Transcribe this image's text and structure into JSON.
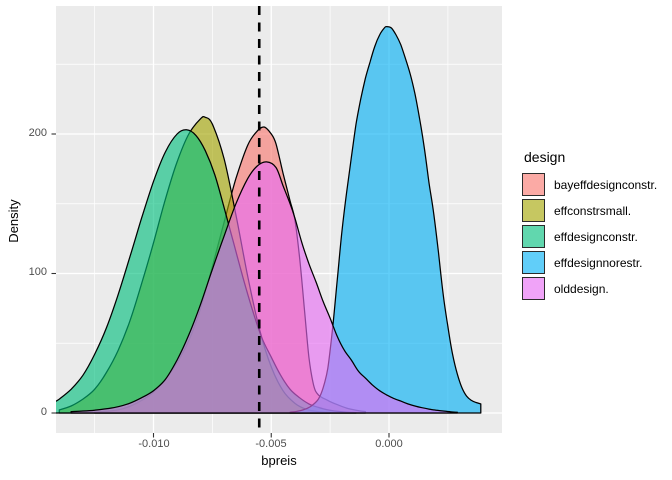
{
  "figure": {
    "background": "#FFFFFF",
    "panel_background": "#EBEBEB",
    "grid_color": "#FFFFFF",
    "tick_color": "#333333",
    "tick_label_color": "#4D4D4D"
  },
  "axes": {
    "x": {
      "title": "bpreis",
      "ticks": [
        {
          "value": -0.01,
          "label": "-0.010"
        },
        {
          "value": -0.005,
          "label": "-0.005"
        },
        {
          "value": 0.0,
          "label": "0.000"
        }
      ],
      "minor": [
        -0.0125,
        -0.0075,
        -0.0025,
        0.0025
      ]
    },
    "y": {
      "title": "Density",
      "ticks": [
        {
          "value": 0,
          "label": "0"
        },
        {
          "value": 100,
          "label": "100"
        },
        {
          "value": 200,
          "label": "200"
        }
      ],
      "minor": [
        50,
        150,
        250
      ]
    }
  },
  "annotations": {
    "vline": {
      "x": -0.00551,
      "style": "dashed",
      "color": "#000000"
    }
  },
  "legend": {
    "title": "design",
    "items": [
      {
        "label": "bayeffdesignconstr.",
        "color": "#F8766D"
      },
      {
        "label": "effconstrsmall.",
        "color": "#A3A500"
      },
      {
        "label": "effdesignconstr.",
        "color": "#00BF7D"
      },
      {
        "label": "effdesignnorestr.",
        "color": "#00B0F6"
      },
      {
        "label": "olddesign.",
        "color": "#E76BF3"
      }
    ]
  },
  "chart_data": {
    "type": "area",
    "title": "",
    "xlabel": "bpreis",
    "ylabel": "Density",
    "xlim": [
      -0.01414,
      0.0048
    ],
    "ylim": [
      -14.3,
      291.8
    ],
    "grid": true,
    "legend_position": "right",
    "fill_opacity": 0.62,
    "stroke_color": "#000000",
    "vline_x": -0.00551,
    "series": [
      {
        "name": "bayeffdesignconstr.",
        "color": "#F8766D",
        "points": [
          [
            -0.0125,
            0.6
          ],
          [
            -0.012,
            1.2
          ],
          [
            -0.0115,
            2.3
          ],
          [
            -0.011,
            4.8
          ],
          [
            -0.0105,
            9
          ],
          [
            -0.01,
            15
          ],
          [
            -0.0095,
            24
          ],
          [
            -0.009,
            36
          ],
          [
            -0.0085,
            52
          ],
          [
            -0.008,
            75
          ],
          [
            -0.0075,
            105
          ],
          [
            -0.007,
            137
          ],
          [
            -0.0065,
            168
          ],
          [
            -0.006,
            192
          ],
          [
            -0.0056,
            202
          ],
          [
            -0.0053,
            205
          ],
          [
            -0.005,
            200
          ],
          [
            -0.0048,
            193
          ],
          [
            -0.0045,
            172
          ],
          [
            -0.0042,
            152
          ],
          [
            -0.004,
            139
          ],
          [
            -0.0038,
            112
          ],
          [
            -0.0036,
            76
          ],
          [
            -0.0034,
            40
          ],
          [
            -0.0032,
            20
          ],
          [
            -0.003,
            13
          ],
          [
            -0.0026,
            9
          ],
          [
            -0.0022,
            6
          ],
          [
            -0.0018,
            3.5
          ],
          [
            -0.0014,
            2
          ],
          [
            -0.001,
            1
          ]
        ]
      },
      {
        "name": "effconstrsmall.",
        "color": "#A3A500",
        "points": [
          [
            -0.014,
            2.2
          ],
          [
            -0.0135,
            5
          ],
          [
            -0.013,
            10
          ],
          [
            -0.0125,
            17
          ],
          [
            -0.012,
            29
          ],
          [
            -0.0115,
            45
          ],
          [
            -0.011,
            66
          ],
          [
            -0.0105,
            93
          ],
          [
            -0.01,
            122
          ],
          [
            -0.0095,
            153
          ],
          [
            -0.009,
            180
          ],
          [
            -0.0085,
            200
          ],
          [
            -0.008,
            211
          ],
          [
            -0.0078,
            212
          ],
          [
            -0.0075,
            207
          ],
          [
            -0.007,
            182
          ],
          [
            -0.0065,
            142
          ],
          [
            -0.006,
            98
          ],
          [
            -0.0055,
            60
          ],
          [
            -0.005,
            33
          ],
          [
            -0.0045,
            16
          ],
          [
            -0.004,
            7
          ],
          [
            -0.0035,
            2.6
          ],
          [
            -0.003,
            1
          ],
          [
            -0.0025,
            0.4
          ]
        ]
      },
      {
        "name": "effdesignconstr.",
        "color": "#00BF7D",
        "points": [
          [
            -0.0142,
            8
          ],
          [
            -0.014,
            10
          ],
          [
            -0.0135,
            17
          ],
          [
            -0.013,
            27
          ],
          [
            -0.0125,
            42
          ],
          [
            -0.012,
            61
          ],
          [
            -0.0115,
            85
          ],
          [
            -0.011,
            112
          ],
          [
            -0.0105,
            140
          ],
          [
            -0.01,
            166
          ],
          [
            -0.0095,
            187
          ],
          [
            -0.009,
            200
          ],
          [
            -0.0086,
            203
          ],
          [
            -0.0082,
            199
          ],
          [
            -0.0078,
            188
          ],
          [
            -0.0074,
            171
          ],
          [
            -0.007,
            147
          ],
          [
            -0.0066,
            122
          ],
          [
            -0.0062,
            97
          ],
          [
            -0.0058,
            74
          ],
          [
            -0.0054,
            54
          ],
          [
            -0.005,
            40
          ],
          [
            -0.0046,
            27
          ],
          [
            -0.0042,
            17
          ],
          [
            -0.0038,
            11
          ],
          [
            -0.0034,
            6.5
          ],
          [
            -0.003,
            4
          ],
          [
            -0.0026,
            2.2
          ],
          [
            -0.0022,
            1.2
          ],
          [
            -0.0018,
            0.6
          ],
          [
            -0.0014,
            0.3
          ]
        ]
      },
      {
        "name": "effdesignnorestr.",
        "color": "#00B0F6",
        "points": [
          [
            -0.0042,
            0.5
          ],
          [
            -0.0039,
            1.2
          ],
          [
            -0.0036,
            2.5
          ],
          [
            -0.0033,
            5
          ],
          [
            -0.003,
            10
          ],
          [
            -0.0028,
            18
          ],
          [
            -0.0026,
            32
          ],
          [
            -0.0024,
            60
          ],
          [
            -0.0022,
            95
          ],
          [
            -0.002,
            130
          ],
          [
            -0.0018,
            158
          ],
          [
            -0.0016,
            183
          ],
          [
            -0.0014,
            207
          ],
          [
            -0.0012,
            225
          ],
          [
            -0.001,
            240
          ],
          [
            -0.0008,
            252
          ],
          [
            -0.0006,
            263
          ],
          [
            -0.0004,
            271
          ],
          [
            -0.0002,
            276
          ],
          [
            -0.0001,
            277
          ],
          [
            0.0001,
            276
          ],
          [
            0.0003,
            271
          ],
          [
            0.0005,
            264
          ],
          [
            0.0007,
            254
          ],
          [
            0.0009,
            243
          ],
          [
            0.0011,
            229
          ],
          [
            0.0013,
            211
          ],
          [
            0.0015,
            190
          ],
          [
            0.0017,
            165
          ],
          [
            0.0019,
            143
          ],
          [
            0.0021,
            115
          ],
          [
            0.0023,
            85
          ],
          [
            0.0025,
            62
          ],
          [
            0.0027,
            42
          ],
          [
            0.0029,
            28
          ],
          [
            0.0031,
            18
          ],
          [
            0.0033,
            12
          ],
          [
            0.0035,
            9
          ],
          [
            0.0037,
            7.5
          ],
          [
            0.0039,
            6.5
          ]
        ]
      },
      {
        "name": "olddesign.",
        "color": "#E76BF3",
        "points": [
          [
            -0.0135,
            1
          ],
          [
            -0.013,
            1.4
          ],
          [
            -0.0125,
            2
          ],
          [
            -0.012,
            3
          ],
          [
            -0.0115,
            4.5
          ],
          [
            -0.011,
            7
          ],
          [
            -0.0105,
            11
          ],
          [
            -0.01,
            16
          ],
          [
            -0.0095,
            24
          ],
          [
            -0.009,
            38
          ],
          [
            -0.0085,
            56
          ],
          [
            -0.008,
            78
          ],
          [
            -0.0075,
            103
          ],
          [
            -0.007,
            127
          ],
          [
            -0.0065,
            150
          ],
          [
            -0.006,
            168
          ],
          [
            -0.0056,
            177
          ],
          [
            -0.0052,
            180
          ],
          [
            -0.0048,
            176
          ],
          [
            -0.0045,
            163
          ],
          [
            -0.0042,
            150
          ],
          [
            -0.004,
            140
          ],
          [
            -0.0037,
            122
          ],
          [
            -0.0034,
            107
          ],
          [
            -0.0031,
            94
          ],
          [
            -0.0028,
            80
          ],
          [
            -0.0025,
            68
          ],
          [
            -0.0022,
            55
          ],
          [
            -0.0019,
            45
          ],
          [
            -0.0016,
            38
          ],
          [
            -0.0013,
            30
          ],
          [
            -0.001,
            25
          ],
          [
            -0.0007,
            20
          ],
          [
            -0.0004,
            16
          ],
          [
            -0.0001,
            13
          ],
          [
            0.0002,
            10.5
          ],
          [
            0.0005,
            8.5
          ],
          [
            0.0008,
            6.5
          ],
          [
            0.0011,
            5
          ],
          [
            0.0014,
            3.8
          ],
          [
            0.0017,
            2.8
          ],
          [
            0.002,
            2
          ],
          [
            0.0023,
            1.4
          ],
          [
            0.0026,
            0.9
          ],
          [
            0.0029,
            0.5
          ]
        ]
      }
    ]
  }
}
